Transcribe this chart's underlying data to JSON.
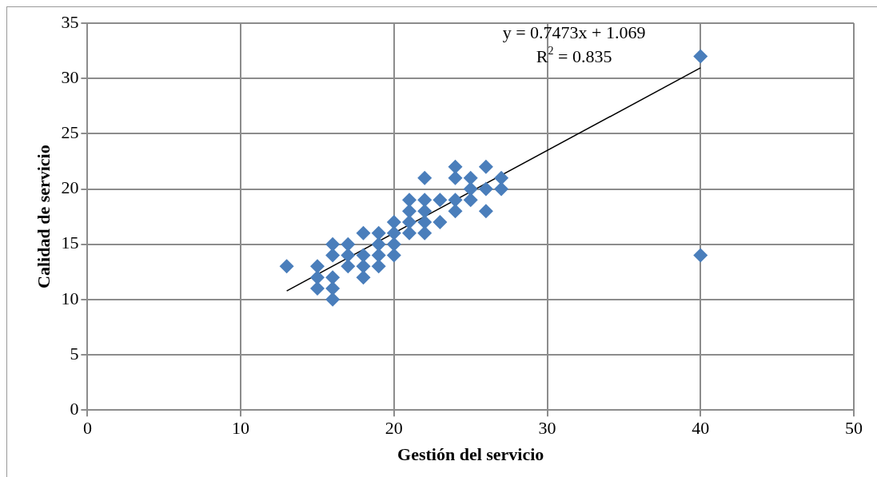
{
  "chart_data": {
    "type": "scatter",
    "xlabel": "Gestión del servicio",
    "ylabel": "Calidad de servicio",
    "annotations": [
      "y = 0.7473x + 1.069",
      "R$^{2}$ = 0.835"
    ],
    "series": [
      {
        "color": "#4a7ebb",
        "marker": "diamond",
        "x": [
          13,
          15,
          15,
          15,
          16,
          16,
          16,
          16,
          16,
          17,
          17,
          17,
          18,
          18,
          18,
          18,
          19,
          19,
          19,
          19,
          20,
          20,
          20,
          20,
          21,
          21,
          21,
          21,
          22,
          22,
          22,
          22,
          22,
          23,
          23,
          24,
          24,
          24,
          24,
          25,
          25,
          25,
          26,
          26,
          26,
          27,
          27,
          40,
          40
        ],
        "values": [
          13,
          13,
          12,
          11,
          15,
          14,
          12,
          11,
          10,
          15,
          14,
          13,
          16,
          14,
          13,
          12,
          16,
          15,
          14,
          13,
          17,
          16,
          15,
          14,
          19,
          18,
          17,
          16,
          21,
          19,
          18,
          17,
          16,
          19,
          17,
          22,
          21,
          19,
          18,
          21,
          20,
          19,
          22,
          20,
          18,
          21,
          20,
          32,
          14
        ]
      },
      {
        "type": "line",
        "color": "#000000",
        "marker": "none",
        "x": [
          13,
          40
        ],
        "values": [
          10.78,
          30.96
        ]
      }
    ],
    "xlim": [
      0,
      50
    ],
    "xticks": [
      0,
      10,
      20,
      30,
      40,
      50
    ],
    "ylim": [
      0,
      35
    ],
    "yticks": [
      0,
      5,
      10,
      15,
      20,
      25,
      30,
      35
    ],
    "grid": true,
    "legend": false
  }
}
